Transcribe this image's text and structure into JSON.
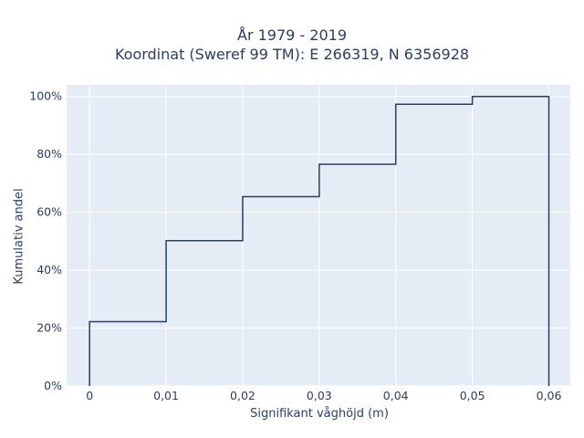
{
  "chart_data": {
    "type": "line",
    "line_shape": "step",
    "title": "År 1979 - 2019",
    "subtitle": "Koordinat (Sweref 99 TM): E 266319, N 6356928",
    "xlabel": "Signifikant våghöjd (m)",
    "ylabel": "Kumulativ andel",
    "x_ticks": [
      0,
      0.01,
      0.02,
      0.03,
      0.04,
      0.05,
      0.06
    ],
    "x_tick_labels": [
      "0",
      "0,01",
      "0,02",
      "0,03",
      "0,04",
      "0,05",
      "0,06"
    ],
    "y_ticks": [
      0,
      20,
      40,
      60,
      80,
      100
    ],
    "y_tick_labels": [
      "0%",
      "20%",
      "40%",
      "60%",
      "80%",
      "100%"
    ],
    "xlim": [
      -0.003,
      0.0628
    ],
    "ylim": [
      0,
      104
    ],
    "grid": true,
    "series": [
      {
        "x": [
          0,
          0,
          0.01,
          0.01,
          0.02,
          0.02,
          0.03,
          0.03,
          0.04,
          0.04,
          0.05,
          0.05,
          0.06,
          0.06
        ],
        "y": [
          0,
          22.2,
          22.2,
          50.2,
          50.2,
          65.4,
          65.4,
          76.6,
          76.6,
          97.3,
          97.3,
          100,
          100,
          0
        ],
        "color": "#2a3f5f"
      }
    ]
  }
}
